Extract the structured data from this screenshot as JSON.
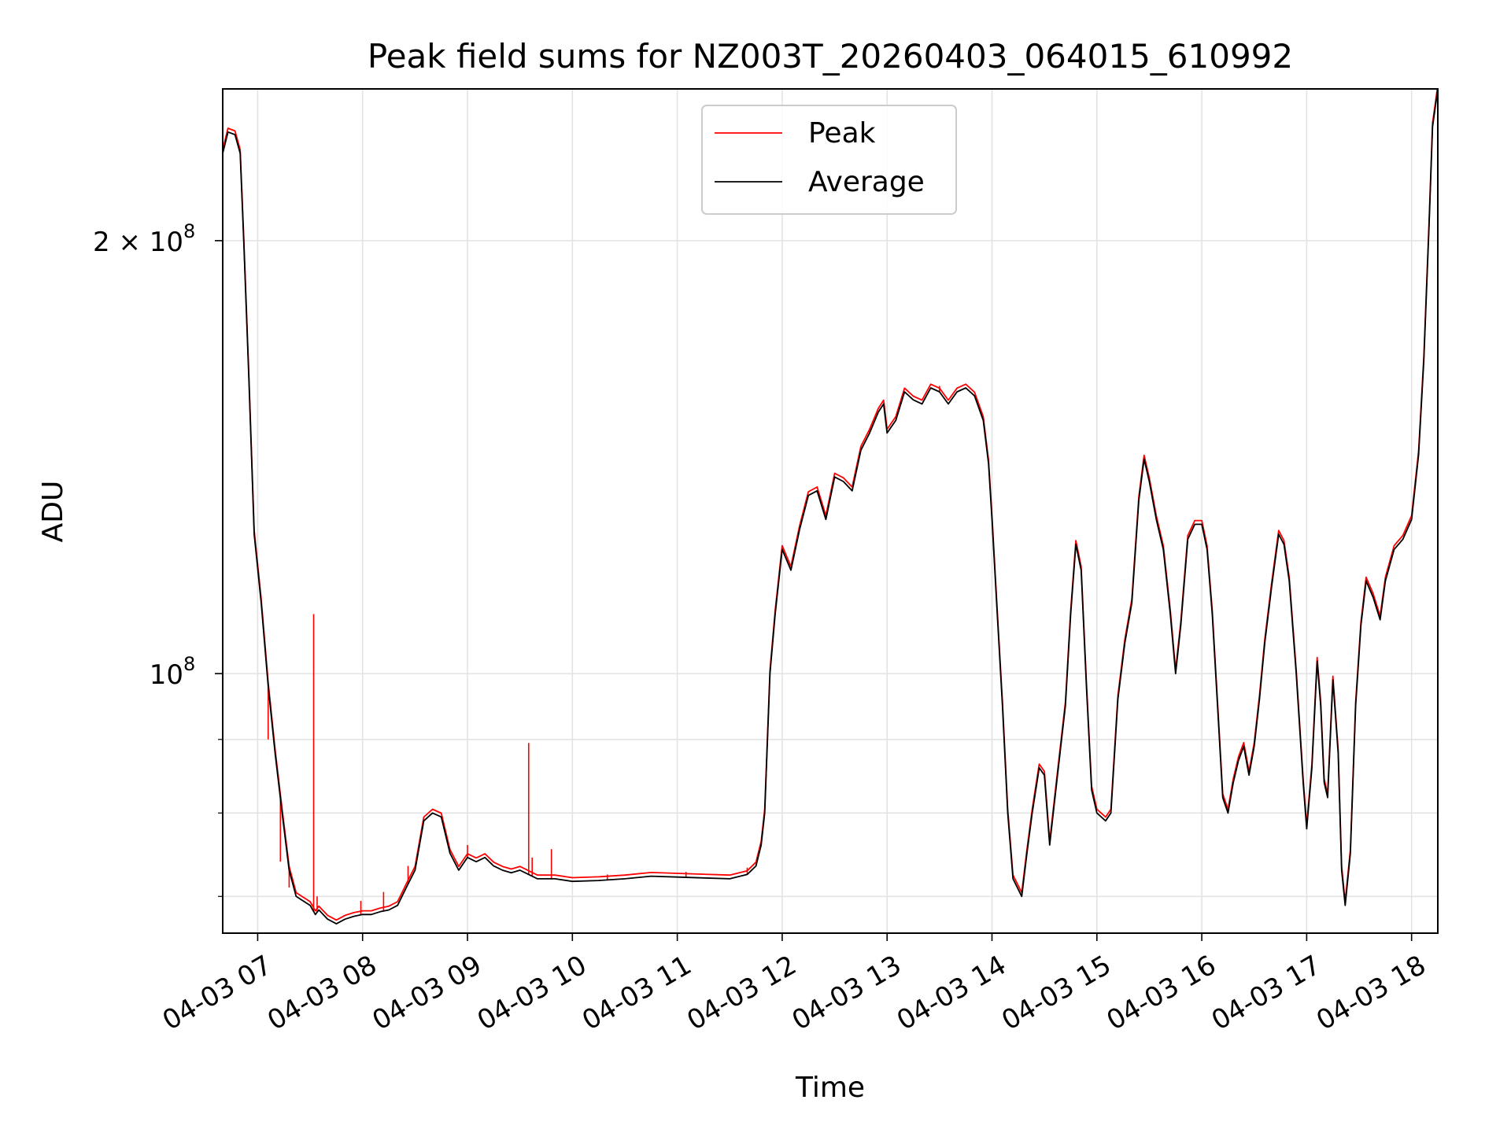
{
  "chart_data": {
    "type": "line",
    "title": "Peak field sums for NZ003T_20260403_064015_610992",
    "xlabel": "Time",
    "ylabel": "ADU",
    "x_tick_labels": [
      "04-03 07",
      "04-03 08",
      "04-03 09",
      "04-03 10",
      "04-03 11",
      "04-03 12",
      "04-03 13",
      "04-03 14",
      "04-03 15",
      "04-03 16",
      "04-03 17",
      "04-03 18"
    ],
    "x_tick_values": [
      "07:00",
      "08:00",
      "09:00",
      "10:00",
      "11:00",
      "12:00",
      "13:00",
      "14:00",
      "15:00",
      "16:00",
      "17:00",
      "18:00"
    ],
    "xlim": [
      "06:40",
      "18:15"
    ],
    "y_scale": "log",
    "ylim": [
      66000000,
      255000000
    ],
    "y_tick_labels": [
      {
        "value": 100000000,
        "mantissa": "10",
        "exponent": "8"
      },
      {
        "value": 200000000,
        "mantissa": "2 × 10",
        "exponent": "8"
      }
    ],
    "y_minor_ticks": [
      70000000,
      80000000,
      90000000
    ],
    "grid": true,
    "legend": {
      "placement": "top-center",
      "entries": [
        "Peak",
        "Average"
      ]
    },
    "series": [
      {
        "name": "Peak",
        "color": "#ff0000"
      },
      {
        "name": "Average",
        "color": "#000000"
      }
    ],
    "average_points": [
      [
        "06:40",
        230000000
      ],
      [
        "06:43",
        238000000
      ],
      [
        "06:47",
        237000000
      ],
      [
        "06:50",
        230000000
      ],
      [
        "06:52",
        200000000
      ],
      [
        "06:55",
        160000000
      ],
      [
        "06:58",
        125000000
      ],
      [
        "07:02",
        112000000
      ],
      [
        "07:06",
        98000000
      ],
      [
        "07:10",
        88000000
      ],
      [
        "07:14",
        80000000
      ],
      [
        "07:18",
        73000000
      ],
      [
        "07:22",
        70000000
      ],
      [
        "07:26",
        69500000
      ],
      [
        "07:30",
        69000000
      ],
      [
        "07:33",
        68000000
      ],
      [
        "07:35",
        68500000
      ],
      [
        "07:40",
        67500000
      ],
      [
        "07:45",
        67000000
      ],
      [
        "07:50",
        67500000
      ],
      [
        "07:55",
        67800000
      ],
      [
        "08:00",
        68000000
      ],
      [
        "08:05",
        68000000
      ],
      [
        "08:10",
        68300000
      ],
      [
        "08:15",
        68500000
      ],
      [
        "08:20",
        69000000
      ],
      [
        "08:25",
        71000000
      ],
      [
        "08:30",
        73000000
      ],
      [
        "08:35",
        79000000
      ],
      [
        "08:40",
        80000000
      ],
      [
        "08:45",
        79500000
      ],
      [
        "08:50",
        75000000
      ],
      [
        "08:55",
        73000000
      ],
      [
        "09:00",
        74500000
      ],
      [
        "09:05",
        74000000
      ],
      [
        "09:10",
        74500000
      ],
      [
        "09:15",
        73500000
      ],
      [
        "09:20",
        73000000
      ],
      [
        "09:25",
        72700000
      ],
      [
        "09:30",
        73000000
      ],
      [
        "09:35",
        72500000
      ],
      [
        "09:40",
        72000000
      ],
      [
        "09:50",
        72000000
      ],
      [
        "10:00",
        71700000
      ],
      [
        "10:15",
        71800000
      ],
      [
        "10:30",
        72000000
      ],
      [
        "10:45",
        72300000
      ],
      [
        "11:00",
        72200000
      ],
      [
        "11:15",
        72100000
      ],
      [
        "11:30",
        72000000
      ],
      [
        "11:40",
        72500000
      ],
      [
        "11:45",
        73500000
      ],
      [
        "11:48",
        76000000
      ],
      [
        "11:50",
        80000000
      ],
      [
        "11:53",
        100000000
      ],
      [
        "11:56",
        110000000
      ],
      [
        "12:00",
        122000000
      ],
      [
        "12:05",
        118000000
      ],
      [
        "12:10",
        126000000
      ],
      [
        "12:15",
        133000000
      ],
      [
        "12:20",
        134000000
      ],
      [
        "12:25",
        128000000
      ],
      [
        "12:30",
        137000000
      ],
      [
        "12:35",
        136000000
      ],
      [
        "12:40",
        134000000
      ],
      [
        "12:45",
        143000000
      ],
      [
        "12:50",
        147000000
      ],
      [
        "12:55",
        152000000
      ],
      [
        "12:58",
        154000000
      ],
      [
        "13:00",
        147000000
      ],
      [
        "13:05",
        150000000
      ],
      [
        "13:10",
        157000000
      ],
      [
        "13:15",
        155000000
      ],
      [
        "13:20",
        154000000
      ],
      [
        "13:25",
        158000000
      ],
      [
        "13:30",
        157000000
      ],
      [
        "13:35",
        154000000
      ],
      [
        "13:40",
        157000000
      ],
      [
        "13:45",
        158000000
      ],
      [
        "13:50",
        156000000
      ],
      [
        "13:55",
        150000000
      ],
      [
        "13:58",
        140000000
      ],
      [
        "14:00",
        128000000
      ],
      [
        "14:03",
        110000000
      ],
      [
        "14:06",
        95000000
      ],
      [
        "14:09",
        80000000
      ],
      [
        "14:12",
        72000000
      ],
      [
        "14:17",
        70000000
      ],
      [
        "14:20",
        75000000
      ],
      [
        "14:23",
        80000000
      ],
      [
        "14:27",
        86000000
      ],
      [
        "14:30",
        85000000
      ],
      [
        "14:33",
        76000000
      ],
      [
        "14:37",
        84000000
      ],
      [
        "14:42",
        95000000
      ],
      [
        "14:45",
        110000000
      ],
      [
        "14:48",
        123000000
      ],
      [
        "14:51",
        118000000
      ],
      [
        "14:54",
        98000000
      ],
      [
        "14:57",
        83000000
      ],
      [
        "15:00",
        80000000
      ],
      [
        "15:05",
        79000000
      ],
      [
        "15:08",
        80000000
      ],
      [
        "15:12",
        96000000
      ],
      [
        "15:16",
        105000000
      ],
      [
        "15:20",
        112000000
      ],
      [
        "15:24",
        132000000
      ],
      [
        "15:27",
        141000000
      ],
      [
        "15:30",
        136000000
      ],
      [
        "15:34",
        128000000
      ],
      [
        "15:38",
        122000000
      ],
      [
        "15:42",
        110000000
      ],
      [
        "15:45",
        100000000
      ],
      [
        "15:48",
        108000000
      ],
      [
        "15:52",
        124000000
      ],
      [
        "15:56",
        127000000
      ],
      [
        "16:00",
        127000000
      ],
      [
        "16:03",
        122000000
      ],
      [
        "16:06",
        110000000
      ],
      [
        "16:09",
        95000000
      ],
      [
        "16:12",
        82000000
      ],
      [
        "16:15",
        80000000
      ],
      [
        "16:18",
        84000000
      ],
      [
        "16:21",
        87000000
      ],
      [
        "16:24",
        89000000
      ],
      [
        "16:27",
        85000000
      ],
      [
        "16:30",
        89000000
      ],
      [
        "16:33",
        96000000
      ],
      [
        "16:36",
        105000000
      ],
      [
        "16:40",
        115000000
      ],
      [
        "16:44",
        125000000
      ],
      [
        "16:47",
        123000000
      ],
      [
        "16:50",
        116000000
      ],
      [
        "16:54",
        100000000
      ],
      [
        "16:58",
        84000000
      ],
      [
        "17:00",
        78000000
      ],
      [
        "17:03",
        86000000
      ],
      [
        "17:06",
        102000000
      ],
      [
        "17:08",
        95000000
      ],
      [
        "17:10",
        84000000
      ],
      [
        "17:12",
        82000000
      ],
      [
        "17:15",
        99000000
      ],
      [
        "17:18",
        88000000
      ],
      [
        "17:20",
        73000000
      ],
      [
        "17:22",
        69000000
      ],
      [
        "17:25",
        75000000
      ],
      [
        "17:28",
        95000000
      ],
      [
        "17:31",
        108000000
      ],
      [
        "17:34",
        116000000
      ],
      [
        "17:38",
        113000000
      ],
      [
        "17:42",
        109000000
      ],
      [
        "17:45",
        116000000
      ],
      [
        "17:50",
        122000000
      ],
      [
        "17:55",
        124000000
      ],
      [
        "18:00",
        128000000
      ],
      [
        "18:04",
        142000000
      ],
      [
        "18:07",
        165000000
      ],
      [
        "18:10",
        205000000
      ],
      [
        "18:12",
        240000000
      ],
      [
        "18:15",
        255000000
      ]
    ],
    "peak_spikes": [
      [
        "07:06",
        90000000
      ],
      [
        "07:13",
        74000000
      ],
      [
        "07:18",
        71000000
      ],
      [
        "07:32",
        110000000
      ],
      [
        "07:34",
        70000000
      ],
      [
        "07:59",
        69500000
      ],
      [
        "08:12",
        70500000
      ],
      [
        "08:26",
        73500000
      ],
      [
        "08:33",
        77000000
      ],
      [
        "09:00",
        76000000
      ],
      [
        "09:35",
        89500000
      ],
      [
        "09:37",
        74500000
      ],
      [
        "09:48",
        75500000
      ],
      [
        "10:20",
        72500000
      ],
      [
        "11:05",
        72800000
      ],
      [
        "11:40",
        73300000
      ],
      [
        "12:50",
        148000000
      ],
      [
        "13:30",
        158500000
      ]
    ]
  }
}
